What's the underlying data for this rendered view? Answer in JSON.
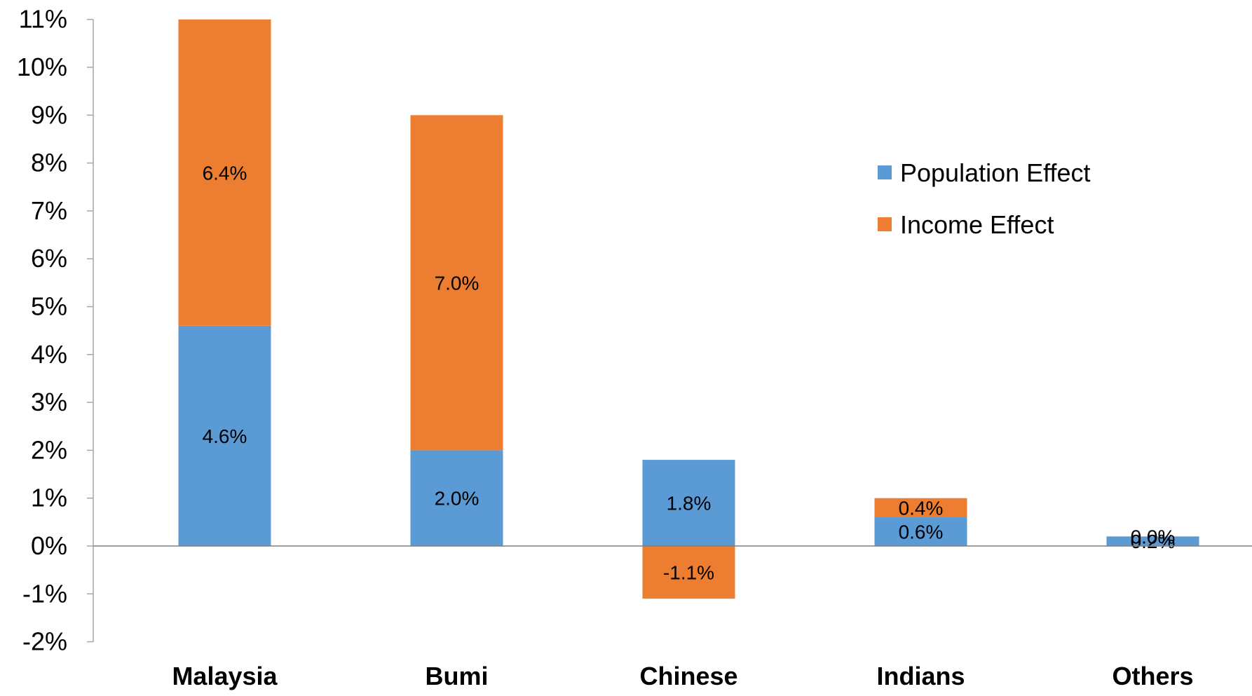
{
  "chart_data": {
    "type": "bar",
    "stacked": true,
    "categories": [
      "Malaysia",
      "Bumi",
      "Chinese",
      "Indians",
      "Others"
    ],
    "series": [
      {
        "name": "Population Effect",
        "color": "#5B9BD5",
        "values": [
          4.6,
          2.0,
          1.8,
          0.6,
          0.2
        ],
        "labels": [
          "4.6%",
          "2.0%",
          "1.8%",
          "0.6%",
          "0.2%"
        ]
      },
      {
        "name": "Income Effect",
        "color": "#ED7D31",
        "values": [
          6.4,
          7.0,
          -1.1,
          0.4,
          0.0
        ],
        "labels": [
          "6.4%",
          "7.0%",
          "-1.1%",
          "0.4%",
          "0.0%"
        ]
      }
    ],
    "ylim": [
      -2,
      11
    ],
    "yticks": [
      -2,
      -1,
      0,
      1,
      2,
      3,
      4,
      5,
      6,
      7,
      8,
      9,
      10,
      11
    ],
    "ytick_labels": [
      "-2%",
      "-1%",
      "0%",
      "1%",
      "2%",
      "3%",
      "4%",
      "5%",
      "6%",
      "7%",
      "8%",
      "9%",
      "10%",
      "11%"
    ],
    "grid": false,
    "legend_position": "right",
    "title": "",
    "xlabel": "",
    "ylabel": ""
  }
}
